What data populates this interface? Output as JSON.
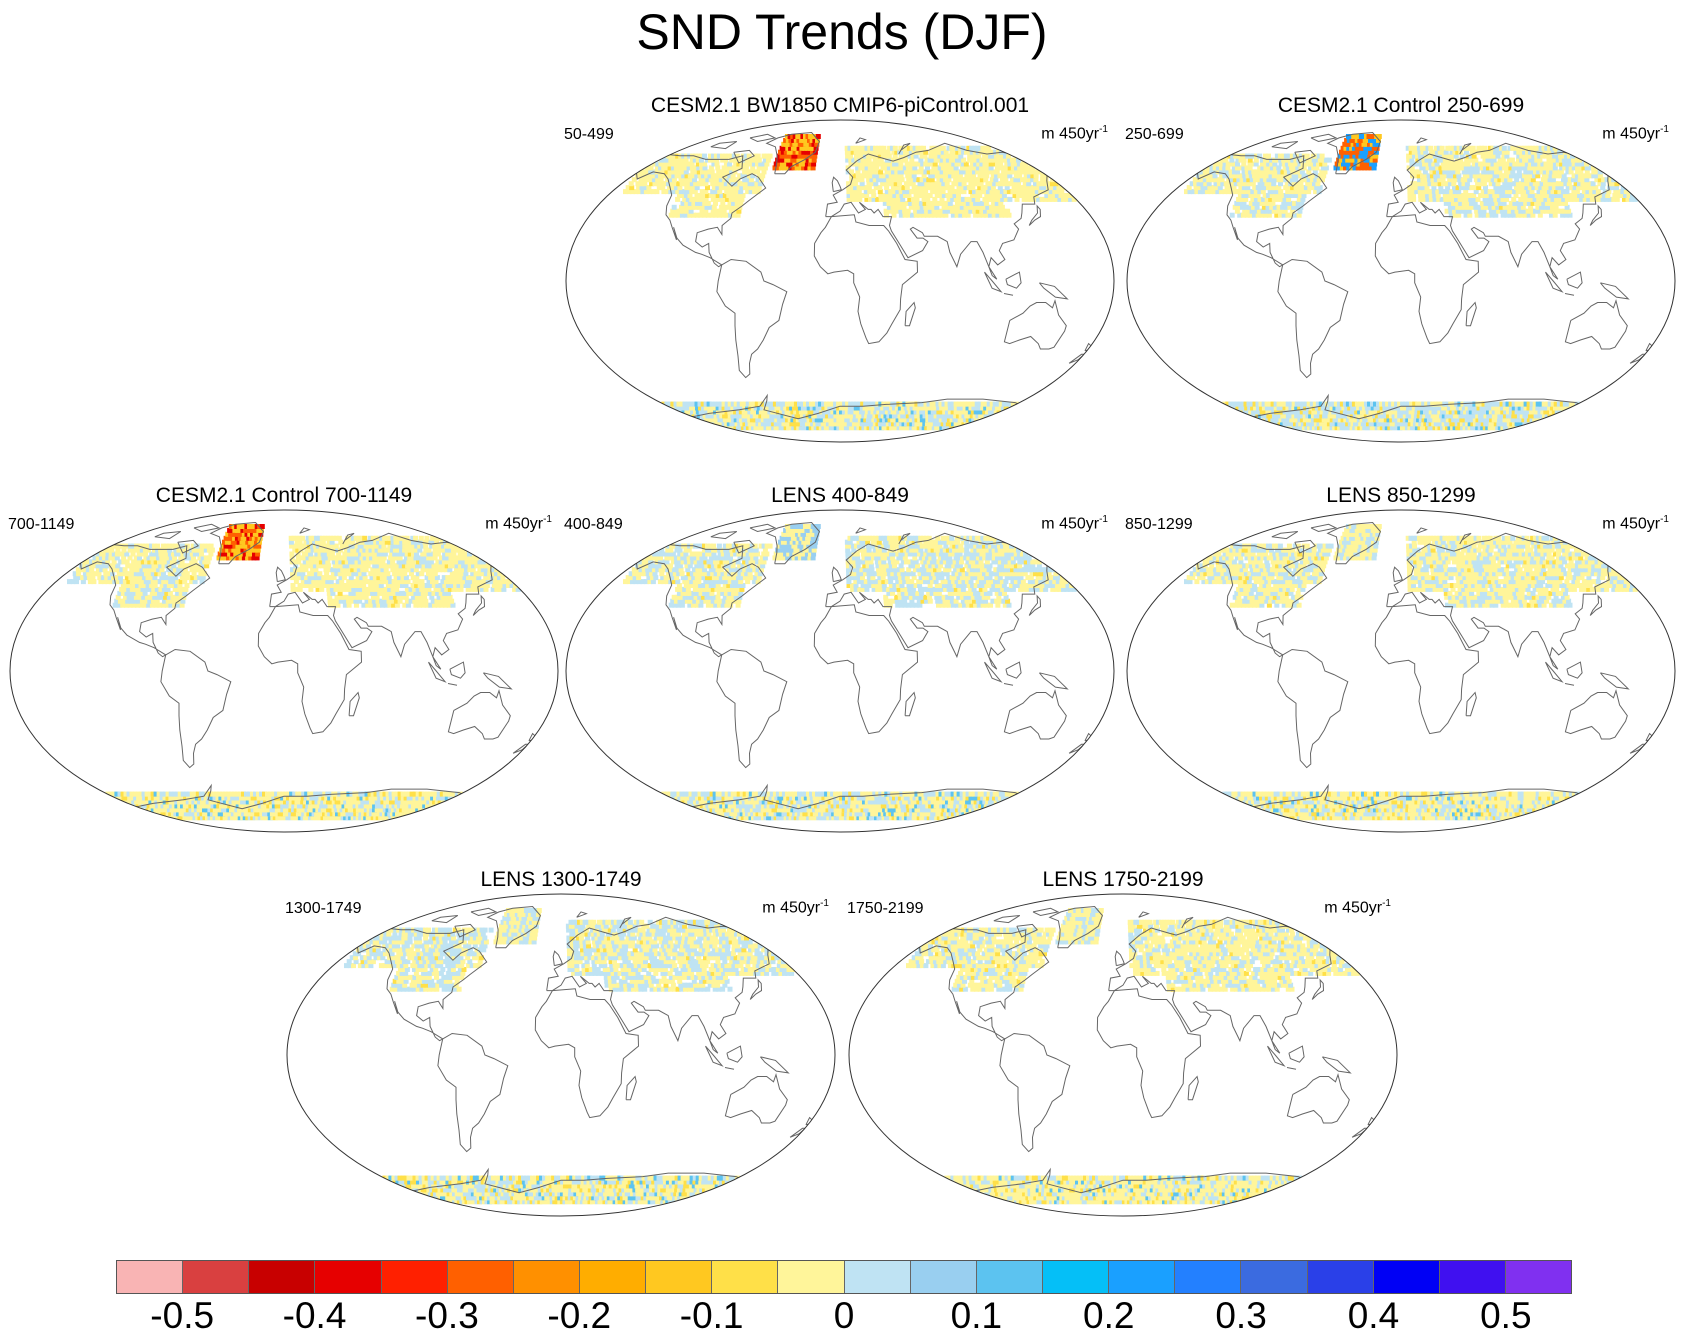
{
  "title": "SND Trends (DJF)",
  "units_prefix": "m 450yr",
  "units_exponent": "-1",
  "panels": [
    {
      "title": "CESM2.1 BW1850 CMIP6-piControl.001",
      "left_label": "50-499",
      "pattern": "p1"
    },
    {
      "title": "CESM2.1 Control 250-699",
      "left_label": "250-699",
      "pattern": "p2"
    },
    {
      "title": "CESM2.1 Control 700-1149",
      "left_label": "700-1149",
      "pattern": "p3"
    },
    {
      "title": "LENS 400-849",
      "left_label": "400-849",
      "pattern": "p4"
    },
    {
      "title": "LENS 850-1299",
      "left_label": "850-1299",
      "pattern": "p5"
    },
    {
      "title": "LENS 1300-1749",
      "left_label": "1300-1749",
      "pattern": "p6"
    },
    {
      "title": "LENS 1750-2199",
      "left_label": "1750-2199",
      "pattern": "p7"
    }
  ],
  "colorbar": {
    "colors": [
      "#f9b4b4",
      "#d94040",
      "#c80000",
      "#e60000",
      "#ff2000",
      "#ff6000",
      "#ff9000",
      "#ffad00",
      "#ffc820",
      "#ffe048",
      "#fff59a",
      "#bfe3f3",
      "#99cff0",
      "#5cc3f0",
      "#05bff7",
      "#1aa0ff",
      "#2380ff",
      "#3b6be0",
      "#2a40e8",
      "#0000f5",
      "#4010f0",
      "#8030f0"
    ],
    "labels": [
      "-0.5",
      "-0.4",
      "-0.3",
      "-0.2",
      "-0.1",
      "0",
      "0.1",
      "0.2",
      "0.3",
      "0.4",
      "0.5"
    ]
  },
  "icons": {
    "map_projection": "robinson-ellipse",
    "coastline_color": "#666666"
  }
}
